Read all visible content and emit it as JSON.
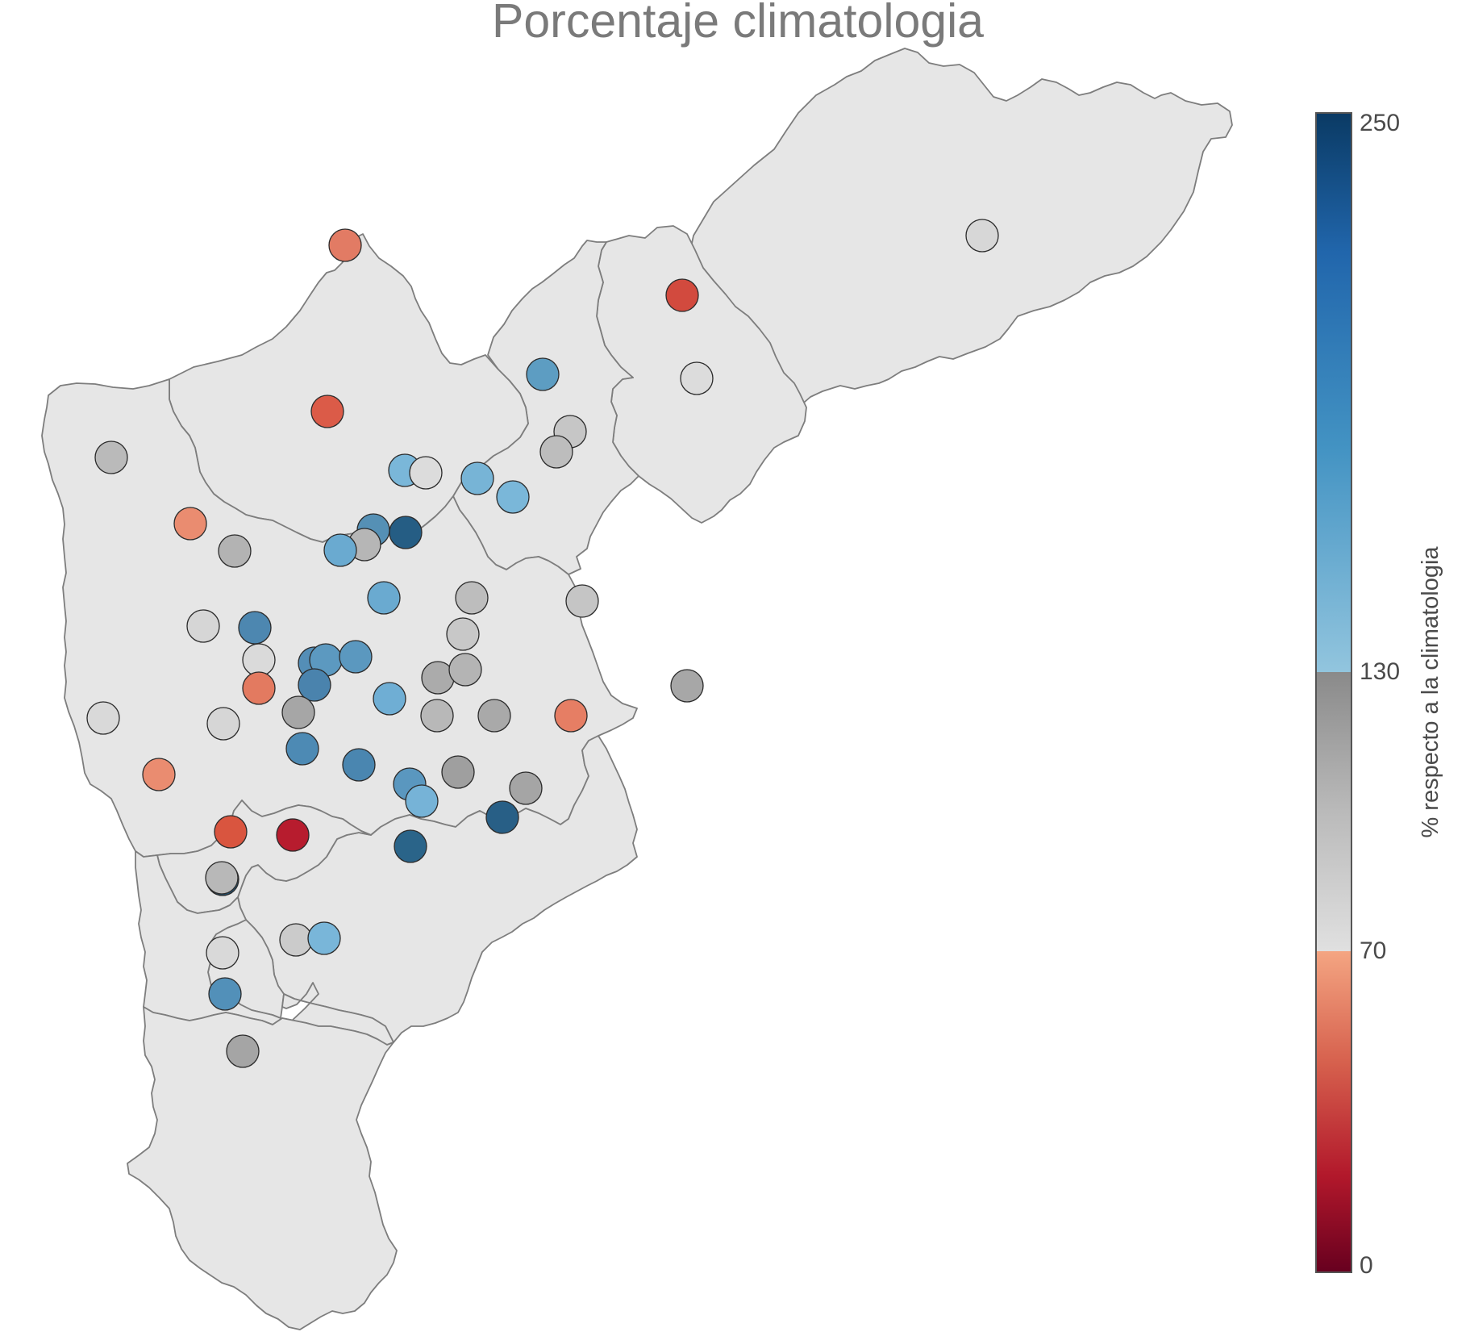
{
  "title": "Porcentaje climatologia",
  "colorbar": {
    "label": "% respecto a la climatologia",
    "min": 0,
    "max": 250,
    "ticks": [
      "250",
      "130",
      "70",
      "0"
    ],
    "tick_values": [
      250,
      130,
      70,
      0
    ],
    "bands": [
      {
        "from": 0,
        "to": 70,
        "colors": [
          "#67001f",
          "#b2182b",
          "#d6604d",
          "#f4a582"
        ]
      },
      {
        "from": 70,
        "to": 130,
        "colors": [
          "#e0e0e0",
          "#bababa",
          "#878787"
        ]
      },
      {
        "from": 130,
        "to": 250,
        "colors": [
          "#92c5de",
          "#4393c3",
          "#2166ac",
          "#053061"
        ]
      }
    ]
  },
  "colors": {
    "region_fill": "#e6e6e6",
    "region_stroke": "#7d7d7d",
    "title": "#7a7a7a"
  },
  "stations": [
    {
      "name": "s1",
      "pct": 100,
      "color": "#d7d7d7"
    },
    {
      "name": "s2",
      "pct": 45,
      "color": "#d24a3e"
    },
    {
      "name": "s3",
      "pct": 62,
      "color": "#e27b64"
    },
    {
      "name": "s4",
      "pct": 96,
      "color": "#dcdcdc"
    },
    {
      "name": "s5",
      "pct": 160,
      "color": "#5d9dc2"
    },
    {
      "name": "s6",
      "pct": 52,
      "color": "#db5b48"
    },
    {
      "name": "s7",
      "pct": 105,
      "color": "#c6c6c6"
    },
    {
      "name": "s8",
      "pct": 108,
      "color": "#bdbdbd"
    },
    {
      "name": "s9",
      "pct": 110,
      "color": "#bababa"
    },
    {
      "name": "s10",
      "pct": 148,
      "color": "#7ab7d9"
    },
    {
      "name": "s11",
      "pct": 95,
      "color": "#dcdcdc"
    },
    {
      "name": "s12",
      "pct": 150,
      "color": "#77b4d6"
    },
    {
      "name": "s13",
      "pct": 148,
      "color": "#7ab7d9"
    },
    {
      "name": "s14",
      "pct": 66,
      "color": "#ea8c70"
    },
    {
      "name": "s15",
      "pct": 115,
      "color": "#b3b3b3"
    },
    {
      "name": "s16",
      "pct": 170,
      "color": "#5590b5"
    },
    {
      "name": "s17",
      "pct": 215,
      "color": "#255d84"
    },
    {
      "name": "s18",
      "pct": 112,
      "color": "#b6b6b6"
    },
    {
      "name": "s19",
      "pct": 152,
      "color": "#6aaad0"
    },
    {
      "name": "s20",
      "pct": 152,
      "color": "#6aaad0"
    },
    {
      "name": "s21",
      "pct": 110,
      "color": "#bdbdbd"
    },
    {
      "name": "s22",
      "pct": 108,
      "color": "#c5c5c5"
    },
    {
      "name": "s23",
      "pct": 92,
      "color": "#d6d6d6"
    },
    {
      "name": "s24",
      "pct": 185,
      "color": "#4d87b0"
    },
    {
      "name": "s25",
      "pct": 98,
      "color": "#dadada"
    },
    {
      "name": "s26",
      "pct": 105,
      "color": "#c8c8c8"
    },
    {
      "name": "s27",
      "pct": 118,
      "color": "#a7a7a7"
    },
    {
      "name": "s28",
      "pct": 172,
      "color": "#548eb7"
    },
    {
      "name": "s29",
      "pct": 165,
      "color": "#5c99c0"
    },
    {
      "name": "s30",
      "pct": 166,
      "color": "#5b98bf"
    },
    {
      "name": "s31",
      "pct": 60,
      "color": "#e37a60"
    },
    {
      "name": "s32",
      "pct": 185,
      "color": "#4a83ad"
    },
    {
      "name": "s33",
      "pct": 116,
      "color": "#ababab"
    },
    {
      "name": "s34",
      "pct": 112,
      "color": "#b4b4b4"
    },
    {
      "name": "s35",
      "pct": 152,
      "color": "#6faed4"
    },
    {
      "name": "s36",
      "pct": 92,
      "color": "#d9d9d9"
    },
    {
      "name": "s37",
      "pct": 95,
      "color": "#d6d6d6"
    },
    {
      "name": "s38",
      "pct": 112,
      "color": "#b8b8b8"
    },
    {
      "name": "s39",
      "pct": 120,
      "color": "#a6a6a6"
    },
    {
      "name": "s40",
      "pct": 120,
      "color": "#a9a9a9"
    },
    {
      "name": "s41",
      "pct": 62,
      "color": "#e67e64"
    },
    {
      "name": "s42",
      "pct": 122,
      "color": "#9f9f9f"
    },
    {
      "name": "s43",
      "pct": 66,
      "color": "#ea8c70"
    },
    {
      "name": "s44",
      "pct": 175,
      "color": "#4d8ab4"
    },
    {
      "name": "s45",
      "pct": 180,
      "color": "#4a86b0"
    },
    {
      "name": "s46",
      "pct": 166,
      "color": "#5a97bf"
    },
    {
      "name": "s47",
      "pct": 118,
      "color": "#a5a5a5"
    },
    {
      "name": "s48",
      "pct": 150,
      "color": "#76b3d7"
    },
    {
      "name": "s49",
      "pct": 212,
      "color": "#285f86"
    },
    {
      "name": "s50",
      "pct": 210,
      "color": "#2a6489"
    },
    {
      "name": "s51",
      "pct": 52,
      "color": "#d9553f"
    },
    {
      "name": "s52",
      "pct": 30,
      "color": "#b71c2e"
    },
    {
      "name": "s53",
      "pct": 215,
      "color": "#225a80"
    },
    {
      "name": "s54",
      "pct": 112,
      "color": "#b8b8b8"
    },
    {
      "name": "s55",
      "pct": 105,
      "color": "#cbcbcb"
    },
    {
      "name": "s56",
      "pct": 98,
      "color": "#d9d9d9"
    },
    {
      "name": "s57",
      "pct": 148,
      "color": "#79b6d9"
    },
    {
      "name": "s58",
      "pct": 170,
      "color": "#5290b9"
    },
    {
      "name": "s59",
      "pct": 120,
      "color": "#a5a5a5"
    }
  ]
}
